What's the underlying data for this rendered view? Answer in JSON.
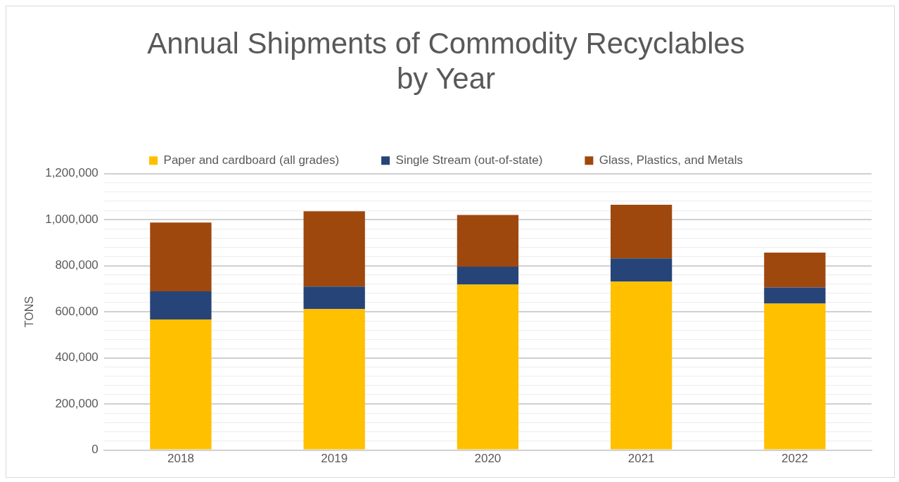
{
  "chart_data": {
    "type": "bar",
    "title": [
      "Annual Shipments of Commodity Recyclables",
      "by Year"
    ],
    "ylabel": "TONS",
    "categories": [
      "2018",
      "2019",
      "2020",
      "2021",
      "2022"
    ],
    "stacked": true,
    "series": [
      {
        "name": "Paper and cardboard (all grades)",
        "color": "#ffc000",
        "values": [
          567000,
          612000,
          718000,
          731000,
          636000
        ]
      },
      {
        "name": "Single Stream (out-of-state)",
        "color": "#264478",
        "values": [
          122000,
          98000,
          78000,
          101000,
          70000
        ]
      },
      {
        "name": "Glass, Plastics, and Metals",
        "color": "#9e480e",
        "values": [
          299000,
          327000,
          225000,
          233000,
          151000
        ]
      }
    ],
    "ylim": [
      0,
      1200000
    ],
    "yticks": [
      {
        "value": 0,
        "label": "0"
      },
      {
        "value": 40000,
        "label": null
      },
      {
        "value": 80000,
        "label": null
      },
      {
        "value": 120000,
        "label": null
      },
      {
        "value": 160000,
        "label": null
      },
      {
        "value": 200000,
        "label": "200,000"
      },
      {
        "value": 240000,
        "label": null
      },
      {
        "value": 280000,
        "label": null
      },
      {
        "value": 320000,
        "label": null
      },
      {
        "value": 360000,
        "label": null
      },
      {
        "value": 400000,
        "label": "400,000"
      },
      {
        "value": 440000,
        "label": null
      },
      {
        "value": 480000,
        "label": null
      },
      {
        "value": 520000,
        "label": null
      },
      {
        "value": 560000,
        "label": null
      },
      {
        "value": 600000,
        "label": "600,000"
      },
      {
        "value": 640000,
        "label": null
      },
      {
        "value": 680000,
        "label": null
      },
      {
        "value": 720000,
        "label": null
      },
      {
        "value": 760000,
        "label": null
      },
      {
        "value": 800000,
        "label": "800,000"
      },
      {
        "value": 840000,
        "label": null
      },
      {
        "value": 880000,
        "label": null
      },
      {
        "value": 920000,
        "label": null
      },
      {
        "value": 960000,
        "label": null
      },
      {
        "value": 1000000,
        "label": "1,000,000"
      },
      {
        "value": 1040000,
        "label": null
      },
      {
        "value": 1080000,
        "label": null
      },
      {
        "value": 1120000,
        "label": null
      },
      {
        "value": 1160000,
        "label": null
      },
      {
        "value": 1200000,
        "label": "1,200,000"
      }
    ],
    "grid": "y",
    "legend": "top"
  }
}
